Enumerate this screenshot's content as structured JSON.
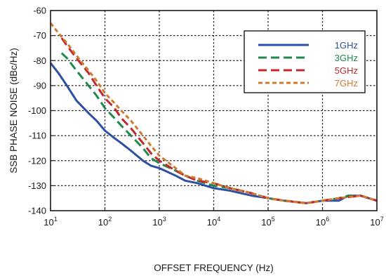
{
  "chart_data": {
    "type": "line",
    "title": "",
    "xlabel": "OFFSET FREQUENCY (Hz)",
    "ylabel": "SSB PHASE NOISE (dBc/Hz)",
    "x_scale": "log",
    "xlim": [
      10,
      10000000
    ],
    "ylim": [
      -140,
      -60
    ],
    "grid": true,
    "legend_position": "top-right",
    "x_ticks": [
      {
        "base": "10",
        "exp": "1",
        "value": 10
      },
      {
        "base": "10",
        "exp": "2",
        "value": 100
      },
      {
        "base": "10",
        "exp": "3",
        "value": 1000
      },
      {
        "base": "10",
        "exp": "4",
        "value": 10000
      },
      {
        "base": "10",
        "exp": "5",
        "value": 100000
      },
      {
        "base": "10",
        "exp": "6",
        "value": 1000000
      },
      {
        "base": "10",
        "exp": "7",
        "value": 10000000
      }
    ],
    "y_ticks": [
      "-60",
      "-70",
      "-80",
      "-90",
      "-100",
      "-110",
      "-120",
      "-130",
      "-140"
    ],
    "series": [
      {
        "name": "1GHz",
        "color": "#2f4fa3",
        "dash": "solid",
        "points": [
          [
            10,
            -81
          ],
          [
            14,
            -85
          ],
          [
            20,
            -90
          ],
          [
            30,
            -96
          ],
          [
            50,
            -101
          ],
          [
            70,
            -104
          ],
          [
            100,
            -108
          ],
          [
            150,
            -111
          ],
          [
            200,
            -113
          ],
          [
            300,
            -116
          ],
          [
            500,
            -120
          ],
          [
            700,
            -122
          ],
          [
            1000,
            -123
          ],
          [
            2000,
            -126
          ],
          [
            3000,
            -128
          ],
          [
            5000,
            -129
          ],
          [
            10000,
            -131
          ],
          [
            20000,
            -132
          ],
          [
            50000,
            -134
          ],
          [
            100000,
            -135
          ],
          [
            200000,
            -136
          ],
          [
            500000,
            -137
          ],
          [
            1000000,
            -136
          ],
          [
            2000000,
            -136
          ],
          [
            3000000,
            -134
          ],
          [
            5000000,
            -134
          ],
          [
            10000000,
            -136
          ]
        ]
      },
      {
        "name": "3GHz",
        "color": "#1f8a4c",
        "dash": "long-dash",
        "points": [
          [
            16,
            -77
          ],
          [
            20,
            -79
          ],
          [
            30,
            -84
          ],
          [
            50,
            -90
          ],
          [
            70,
            -94
          ],
          [
            100,
            -99
          ],
          [
            150,
            -103
          ],
          [
            200,
            -106
          ],
          [
            300,
            -110
          ],
          [
            500,
            -115
          ],
          [
            700,
            -119
          ],
          [
            1000,
            -121
          ],
          [
            2000,
            -124
          ],
          [
            3000,
            -126
          ],
          [
            5000,
            -128
          ],
          [
            10000,
            -130
          ],
          [
            20000,
            -131
          ],
          [
            50000,
            -133
          ],
          [
            100000,
            -135
          ],
          [
            200000,
            -136
          ],
          [
            500000,
            -137
          ],
          [
            1000000,
            -136
          ],
          [
            2000000,
            -135
          ],
          [
            3000000,
            -134
          ],
          [
            5000000,
            -134
          ],
          [
            10000000,
            -136
          ]
        ]
      },
      {
        "name": "5GHz",
        "color": "#c0282e",
        "dash": "long-dash",
        "points": [
          [
            16,
            -71
          ],
          [
            20,
            -74
          ],
          [
            30,
            -79
          ],
          [
            50,
            -85
          ],
          [
            70,
            -90
          ],
          [
            100,
            -95
          ],
          [
            150,
            -99
          ],
          [
            200,
            -103
          ],
          [
            300,
            -107
          ],
          [
            500,
            -113
          ],
          [
            700,
            -117
          ],
          [
            1000,
            -120
          ],
          [
            2000,
            -124
          ],
          [
            3000,
            -126
          ],
          [
            5000,
            -128
          ],
          [
            10000,
            -129
          ],
          [
            20000,
            -131
          ],
          [
            50000,
            -133
          ],
          [
            100000,
            -135
          ],
          [
            200000,
            -136
          ],
          [
            500000,
            -137
          ],
          [
            1000000,
            -136
          ],
          [
            2000000,
            -135
          ],
          [
            5000000,
            -134
          ],
          [
            10000000,
            -136
          ]
        ]
      },
      {
        "name": "7GHz",
        "color": "#d07a2e",
        "dash": "short-dash",
        "points": [
          [
            10,
            -65
          ],
          [
            14,
            -69
          ],
          [
            20,
            -73
          ],
          [
            30,
            -78
          ],
          [
            50,
            -84
          ],
          [
            70,
            -88
          ],
          [
            100,
            -93
          ],
          [
            150,
            -97
          ],
          [
            200,
            -100
          ],
          [
            300,
            -104
          ],
          [
            500,
            -110
          ],
          [
            700,
            -114
          ],
          [
            1000,
            -118
          ],
          [
            2000,
            -123
          ],
          [
            3000,
            -126
          ],
          [
            5000,
            -127
          ],
          [
            10000,
            -129
          ],
          [
            20000,
            -131
          ],
          [
            50000,
            -133
          ],
          [
            100000,
            -135
          ],
          [
            200000,
            -136
          ],
          [
            500000,
            -137
          ],
          [
            1000000,
            -136
          ],
          [
            2000000,
            -135
          ],
          [
            5000000,
            -134
          ],
          [
            10000000,
            -136
          ]
        ]
      }
    ]
  }
}
